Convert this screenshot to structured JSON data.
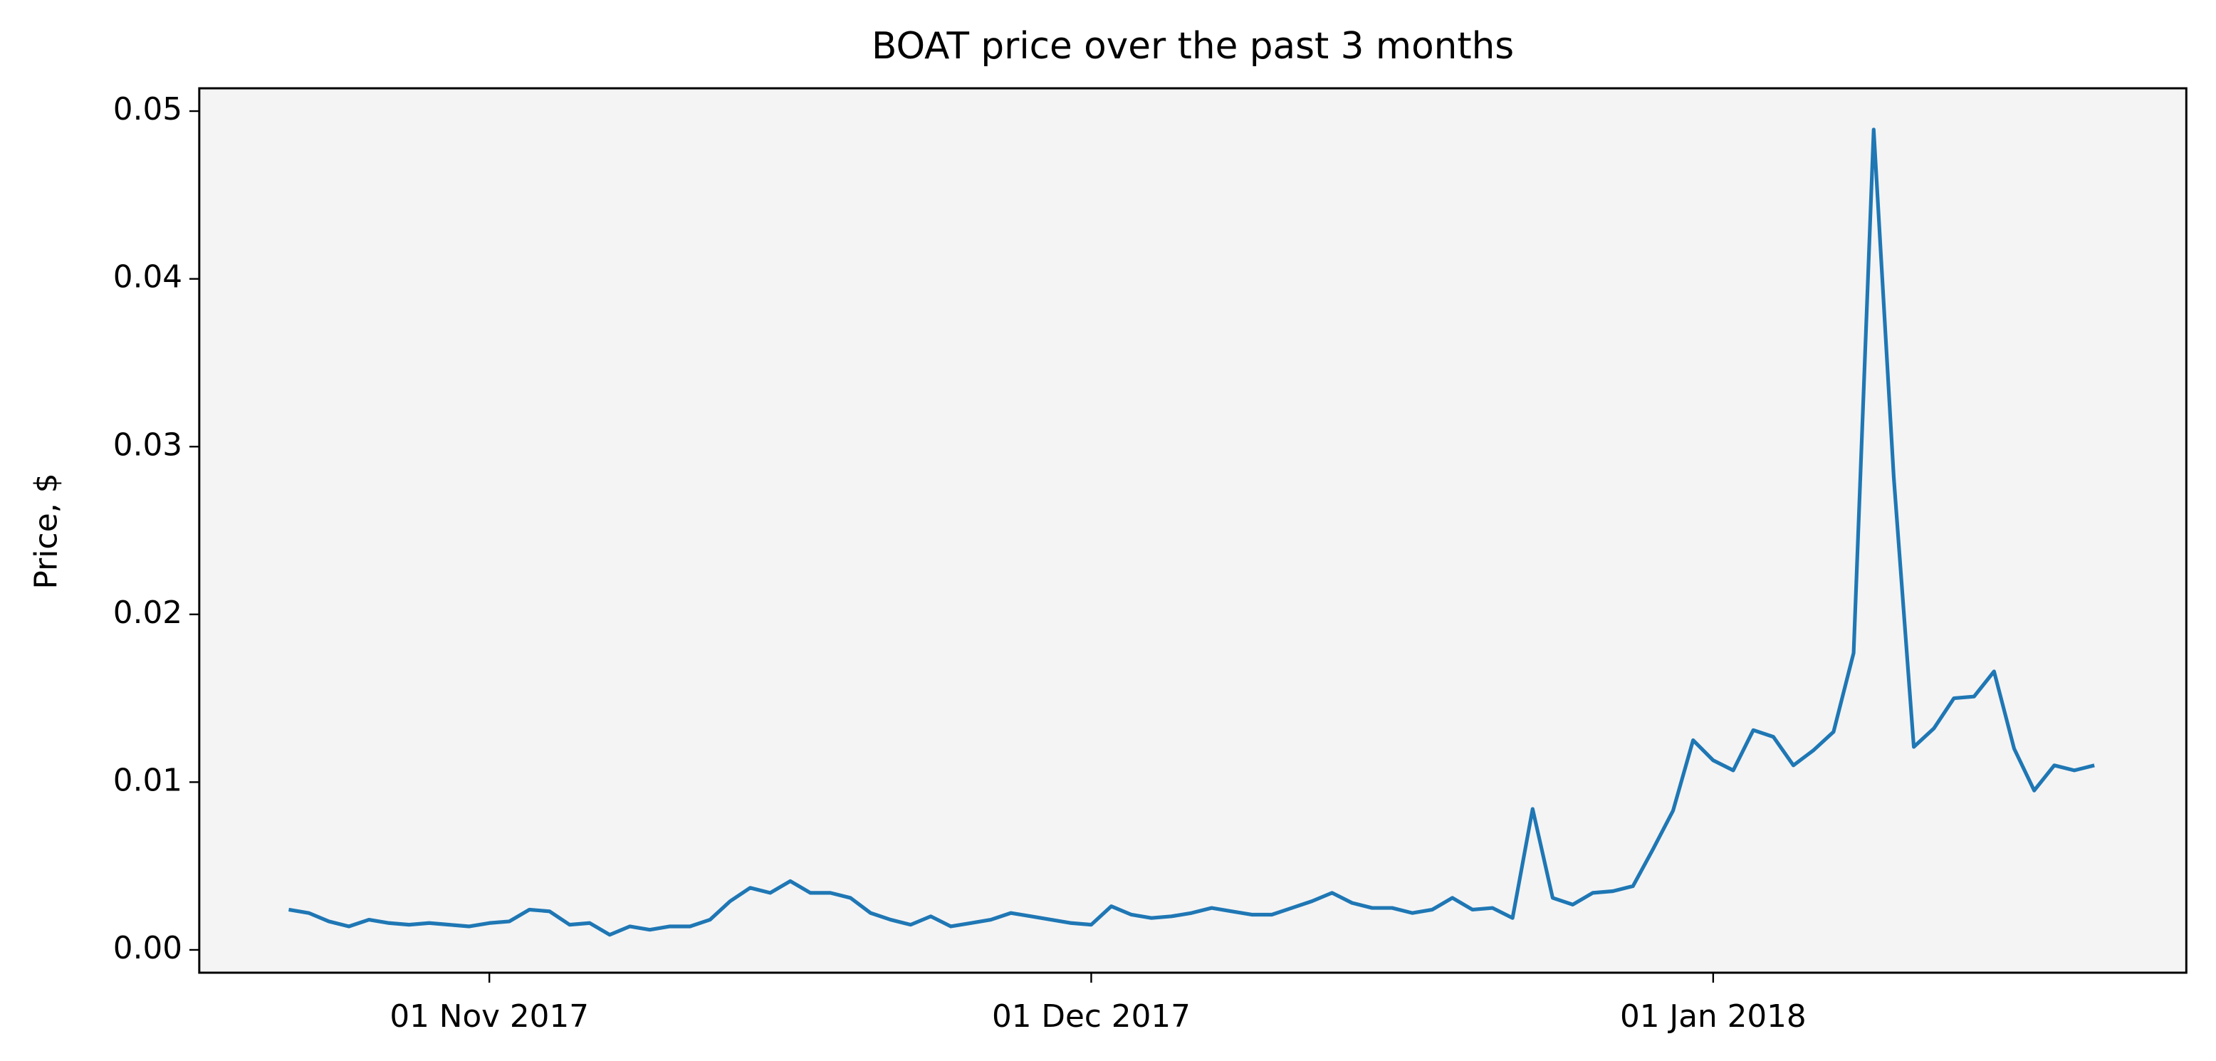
{
  "chart_data": {
    "type": "line",
    "title": "BOAT price over the past 3 months",
    "y_label": "Price, $",
    "color": "#1f77b4",
    "background": "#f4f4f5",
    "x": [
      "2017-10-22",
      "2017-10-23",
      "2017-10-24",
      "2017-10-25",
      "2017-10-26",
      "2017-10-27",
      "2017-10-28",
      "2017-10-29",
      "2017-10-30",
      "2017-10-31",
      "2017-11-01",
      "2017-11-02",
      "2017-11-03",
      "2017-11-04",
      "2017-11-05",
      "2017-11-06",
      "2017-11-07",
      "2017-11-08",
      "2017-11-09",
      "2017-11-10",
      "2017-11-11",
      "2017-11-12",
      "2017-11-13",
      "2017-11-14",
      "2017-11-15",
      "2017-11-16",
      "2017-11-17",
      "2017-11-18",
      "2017-11-19",
      "2017-11-20",
      "2017-11-21",
      "2017-11-22",
      "2017-11-23",
      "2017-11-24",
      "2017-11-25",
      "2017-11-26",
      "2017-11-27",
      "2017-11-28",
      "2017-11-29",
      "2017-11-30",
      "2017-12-01",
      "2017-12-02",
      "2017-12-03",
      "2017-12-04",
      "2017-12-05",
      "2017-12-06",
      "2017-12-07",
      "2017-12-08",
      "2017-12-09",
      "2017-12-10",
      "2017-12-11",
      "2017-12-12",
      "2017-12-13",
      "2017-12-14",
      "2017-12-15",
      "2017-12-16",
      "2017-12-17",
      "2017-12-18",
      "2017-12-19",
      "2017-12-20",
      "2017-12-21",
      "2017-12-22",
      "2017-12-23",
      "2017-12-24",
      "2017-12-25",
      "2017-12-26",
      "2017-12-27",
      "2017-12-28",
      "2017-12-29",
      "2017-12-30",
      "2017-12-31",
      "2018-01-01",
      "2018-01-02",
      "2018-01-03",
      "2018-01-04",
      "2018-01-05",
      "2018-01-06",
      "2018-01-07",
      "2018-01-08",
      "2018-01-09",
      "2018-01-10",
      "2018-01-11",
      "2018-01-12",
      "2018-01-13",
      "2018-01-14",
      "2018-01-15",
      "2018-01-16",
      "2018-01-17",
      "2018-01-18",
      "2018-01-19",
      "2018-01-20"
    ],
    "values": [
      0.0024,
      0.0022,
      0.0017,
      0.0014,
      0.0018,
      0.0016,
      0.0015,
      0.0016,
      0.0015,
      0.0014,
      0.0016,
      0.0017,
      0.0024,
      0.0023,
      0.0015,
      0.0016,
      0.0009,
      0.0014,
      0.0012,
      0.0014,
      0.0014,
      0.0018,
      0.0029,
      0.0037,
      0.0034,
      0.0041,
      0.0034,
      0.0034,
      0.0031,
      0.0022,
      0.0018,
      0.0015,
      0.002,
      0.0014,
      0.0016,
      0.0018,
      0.0022,
      0.002,
      0.0018,
      0.0016,
      0.0015,
      0.0026,
      0.0021,
      0.0019,
      0.002,
      0.0022,
      0.0025,
      0.0023,
      0.0021,
      0.0021,
      0.0025,
      0.0029,
      0.0034,
      0.0028,
      0.0025,
      0.0025,
      0.0022,
      0.0024,
      0.0031,
      0.0024,
      0.0025,
      0.0019,
      0.0084,
      0.0031,
      0.0027,
      0.0034,
      0.0035,
      0.0038,
      0.006,
      0.0083,
      0.0125,
      0.0113,
      0.0107,
      0.0131,
      0.0127,
      0.011,
      0.0119,
      0.013,
      0.0177,
      0.0489,
      0.0282,
      0.0121,
      0.0132,
      0.015,
      0.0151,
      0.0166,
      0.012,
      0.0095,
      0.011,
      0.0107,
      0.011
    ],
    "xlim": [
      "2017-10-17T13:00:00Z",
      "2018-01-24T14:00:00Z"
    ],
    "xticks": [
      {
        "value": "2017-11-01",
        "label": "01 Nov 2017"
      },
      {
        "value": "2017-12-01",
        "label": "01 Dec 2017"
      },
      {
        "value": "2018-01-01",
        "label": "01 Jan 2018"
      }
    ],
    "ylim": [
      -0.00136,
      0.05136
    ],
    "yticks": [
      {
        "value": 0,
        "label": "0.00"
      },
      {
        "value": 0.01,
        "label": "0.01"
      },
      {
        "value": 0.02,
        "label": "0.02"
      },
      {
        "value": 0.03,
        "label": "0.03"
      },
      {
        "value": 0.04,
        "label": "0.04"
      },
      {
        "value": 0.05,
        "label": "0.05"
      }
    ]
  }
}
